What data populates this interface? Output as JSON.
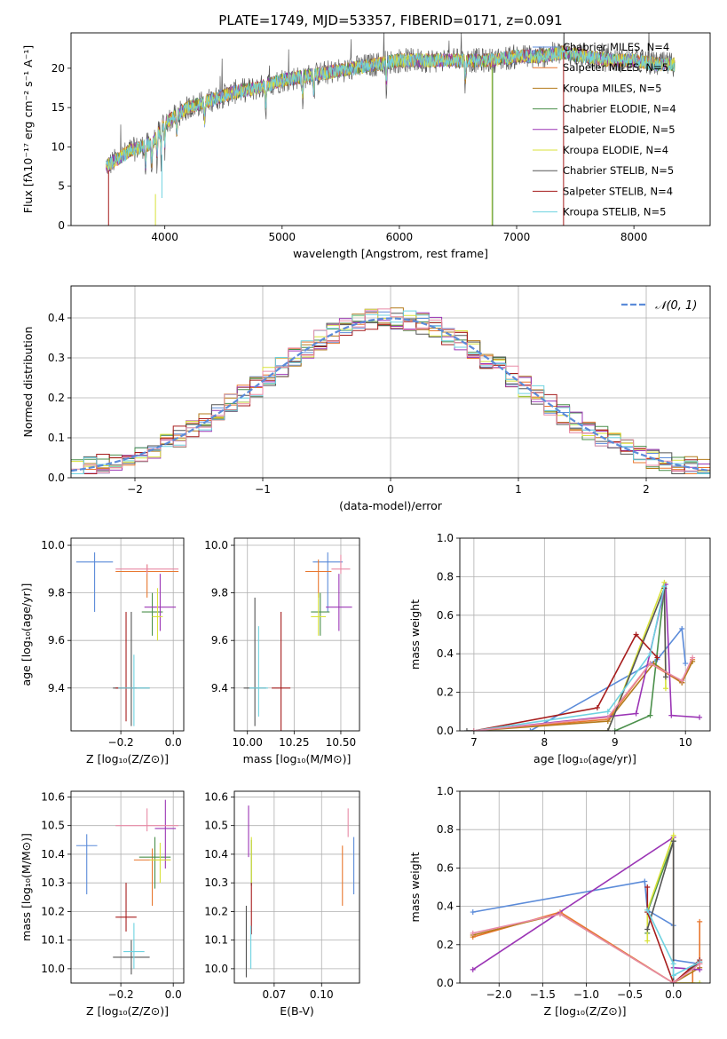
{
  "colors": [
    "#5b8bd9",
    "#e8772e",
    "#b47b1c",
    "#4a8f4a",
    "#9b35b5",
    "#d8e23a",
    "#555555",
    "#a61c1c",
    "#6ed2e0",
    "#e88aa6"
  ],
  "chart_data": [
    {
      "id": "spectrum",
      "type": "line",
      "title": "PLATE=1749, MJD=53357, FIBERID=0171, z=0.091",
      "xlabel": "wavelength [Angstrom, rest frame]",
      "ylabel": "Flux [fλ10⁻¹⁷ erg cm⁻² s⁻¹ A⁻¹]",
      "xlim": [
        3200,
        8650
      ],
      "ylim": [
        0,
        24.5
      ],
      "xticks": [
        4000,
        5000,
        6000,
        7000,
        8000
      ],
      "yticks": [
        0,
        5,
        10,
        15,
        20
      ],
      "grid": false,
      "legend_position": "top-right",
      "wavelength_range": [
        3500,
        8350
      ],
      "series": [
        {
          "name": "Chabrier MILES, N_SSP=4",
          "color_index": 0
        },
        {
          "name": "Salpeter MILES, N_SSP=5",
          "color_index": 1
        },
        {
          "name": "Kroupa MILES, N_SSP=5",
          "color_index": 2
        },
        {
          "name": "Chabrier ELODIE, N_SSP=4",
          "color_index": 3
        },
        {
          "name": "Salpeter ELODIE, N_SSP=5",
          "color_index": 4
        },
        {
          "name": "Kroupa ELODIE, N_SSP=4",
          "color_index": 5
        },
        {
          "name": "Chabrier STELIB, N_SSP=5",
          "color_index": 6
        },
        {
          "name": "Salpeter STELIB, N_SSP=4",
          "color_index": 7
        },
        {
          "name": "Kroupa STELIB, N_SSP=5",
          "color_index": 8
        }
      ],
      "continuum": [
        [
          3500,
          7.5
        ],
        [
          3600,
          8.5
        ],
        [
          3700,
          9.5
        ],
        [
          3800,
          10
        ],
        [
          3900,
          10.5
        ],
        [
          4000,
          13
        ],
        [
          4100,
          14
        ],
        [
          4200,
          15
        ],
        [
          4400,
          16
        ],
        [
          4600,
          17
        ],
        [
          4800,
          17.5
        ],
        [
          5000,
          18.5
        ],
        [
          5200,
          19
        ],
        [
          5400,
          19.5
        ],
        [
          5600,
          20
        ],
        [
          5800,
          20.5
        ],
        [
          6000,
          21
        ],
        [
          6200,
          21
        ],
        [
          6400,
          21
        ],
        [
          6600,
          21
        ],
        [
          6800,
          21
        ],
        [
          7000,
          21.5
        ],
        [
          7200,
          21.5
        ],
        [
          7400,
          22
        ],
        [
          7600,
          21.5
        ],
        [
          7800,
          21
        ],
        [
          8000,
          21
        ],
        [
          8200,
          20.5
        ],
        [
          8350,
          20.5
        ]
      ]
    },
    {
      "id": "residuals",
      "type": "step",
      "xlabel": "(data-model)/error",
      "ylabel": "Normed distribution",
      "xlim": [
        -2.5,
        2.5
      ],
      "ylim": [
        0,
        0.48
      ],
      "xticks": [
        -2,
        -1,
        0,
        1,
        2
      ],
      "yticks": [
        0.0,
        0.1,
        0.2,
        0.3,
        0.4
      ],
      "grid": true,
      "legend_position": "top-right",
      "legend": "𝒩(0, 1)",
      "bin_width": 0.1,
      "series_count": 10
    },
    {
      "id": "z-age",
      "type": "errorbar",
      "xlabel": "Z [log₁₀(Z/Z⊙)]",
      "ylabel": "age  [log₁₀(age/yr)]",
      "xlim": [
        -0.39,
        0.04
      ],
      "ylim": [
        9.22,
        10.03
      ],
      "xticks": [
        -0.2,
        0.0
      ],
      "yticks": [
        9.4,
        9.6,
        9.8,
        10.0
      ],
      "grid": true,
      "points": [
        {
          "x": -0.3,
          "y": 9.93,
          "xerr": 0.07,
          "yerr": [
            0.21,
            0.04
          ],
          "color_index": 0
        },
        {
          "x": -0.1,
          "y": 9.89,
          "xerr": 0.12,
          "yerr": [
            0.11,
            0.03
          ],
          "color_index": 1
        },
        {
          "x": -0.08,
          "y": 9.72,
          "xerr": 0.04,
          "yerr": [
            0.1,
            0.08
          ],
          "color_index": 3
        },
        {
          "x": -0.05,
          "y": 9.74,
          "xerr": 0.06,
          "yerr": [
            0.1,
            0.14
          ],
          "color_index": 4
        },
        {
          "x": -0.06,
          "y": 9.7,
          "xerr": 0.02,
          "yerr": [
            0.1,
            0.12
          ],
          "color_index": 5
        },
        {
          "x": -0.1,
          "y": 9.9,
          "xerr": 0.12,
          "yerr": [
            0.02,
            0.02
          ],
          "color_index": 9
        },
        {
          "x": -0.16,
          "y": 9.4,
          "xerr": 0.07,
          "yerr": [
            0.16,
            0.32
          ],
          "color_index": 6
        },
        {
          "x": -0.18,
          "y": 9.4,
          "xerr": 0.04,
          "yerr": [
            0.14,
            0.32
          ],
          "color_index": 7
        },
        {
          "x": -0.15,
          "y": 9.4,
          "xerr": 0.06,
          "yerr": [
            0.16,
            0.14
          ],
          "color_index": 8
        }
      ]
    },
    {
      "id": "mass-age",
      "type": "errorbar",
      "xlabel": "mass [log₁₀(M/M⊙)]",
      "ylabel": "",
      "xlim": [
        9.93,
        10.6
      ],
      "ylim": [
        9.22,
        10.03
      ],
      "xticks": [
        10.0,
        10.25,
        10.5
      ],
      "yticks": [
        9.4,
        9.6,
        9.8,
        10.0
      ],
      "grid": true,
      "points": [
        {
          "x": 10.43,
          "y": 9.93,
          "xerr": 0.08,
          "yerr": [
            0.21,
            0.04
          ],
          "color_index": 0
        },
        {
          "x": 10.38,
          "y": 9.89,
          "xerr": 0.07,
          "yerr": [
            0.11,
            0.05
          ],
          "color_index": 1
        },
        {
          "x": 10.39,
          "y": 9.72,
          "xerr": 0.05,
          "yerr": [
            0.1,
            0.08
          ],
          "color_index": 3
        },
        {
          "x": 10.49,
          "y": 9.74,
          "xerr": 0.07,
          "yerr": [
            0.1,
            0.14
          ],
          "color_index": 4
        },
        {
          "x": 10.38,
          "y": 9.7,
          "xerr": 0.04,
          "yerr": [
            0.08,
            0.1
          ],
          "color_index": 5
        },
        {
          "x": 10.5,
          "y": 9.9,
          "xerr": 0.05,
          "yerr": [
            0.02,
            0.06
          ],
          "color_index": 9
        },
        {
          "x": 10.04,
          "y": 9.4,
          "xerr": 0.06,
          "yerr": [
            0.16,
            0.38
          ],
          "color_index": 6
        },
        {
          "x": 10.18,
          "y": 9.4,
          "xerr": 0.05,
          "yerr": [
            0.18,
            0.32
          ],
          "color_index": 7
        },
        {
          "x": 10.06,
          "y": 9.4,
          "xerr": 0.05,
          "yerr": [
            0.12,
            0.26
          ],
          "color_index": 8
        }
      ]
    },
    {
      "id": "age-weight",
      "type": "line",
      "xlabel": "age  [log₁₀(age/yr)]",
      "ylabel": "mass weight",
      "xlim": [
        6.8,
        10.35
      ],
      "ylim": [
        0,
        1
      ],
      "xticks": [
        7,
        8,
        9,
        10
      ],
      "yticks": [
        0.0,
        0.2,
        0.4,
        0.6,
        0.8,
        1.0
      ],
      "grid": true,
      "series": [
        {
          "color_index": 0,
          "x": [
            7.8,
            9.6,
            9.95,
            10.0
          ],
          "y": [
            0.0,
            0.37,
            0.53,
            0.35
          ]
        },
        {
          "color_index": 1,
          "x": [
            7.0,
            8.9,
            9.5,
            9.95,
            10.1
          ],
          "y": [
            0.0,
            0.06,
            0.35,
            0.25,
            0.37
          ]
        },
        {
          "color_index": 2,
          "x": [
            7.0,
            8.9,
            9.55,
            9.95,
            10.1
          ],
          "y": [
            0.0,
            0.05,
            0.35,
            0.25,
            0.36
          ]
        },
        {
          "color_index": 3,
          "x": [
            9.0,
            9.5,
            9.7
          ],
          "y": [
            0.0,
            0.08,
            0.74
          ]
        },
        {
          "color_index": 4,
          "x": [
            7.0,
            9.3,
            9.72,
            9.8,
            10.2
          ],
          "y": [
            0.0,
            0.09,
            0.76,
            0.08,
            0.07
          ]
        },
        {
          "color_index": 5,
          "x": [
            7.0,
            8.9,
            9.7,
            9.72
          ],
          "y": [
            0.0,
            0.0,
            0.77,
            0.22
          ]
        },
        {
          "color_index": 6,
          "x": [
            6.9,
            8.9,
            9.7,
            9.72
          ],
          "y": [
            0.0,
            0.0,
            0.74,
            0.28
          ]
        },
        {
          "color_index": 7,
          "x": [
            7.0,
            8.75,
            9.3,
            9.6
          ],
          "y": [
            0.0,
            0.12,
            0.5,
            0.38
          ]
        },
        {
          "color_index": 8,
          "x": [
            7.0,
            8.9,
            9.5,
            9.7
          ],
          "y": [
            0.0,
            0.1,
            0.4,
            0.75
          ]
        },
        {
          "color_index": 9,
          "x": [
            7.0,
            8.9,
            9.5,
            9.95,
            10.1
          ],
          "y": [
            0.0,
            0.07,
            0.35,
            0.26,
            0.38
          ]
        }
      ]
    },
    {
      "id": "z-mass",
      "type": "errorbar",
      "xlabel": "Z [log₁₀(Z/Z⊙)]",
      "ylabel": "mass [log₁₀(M/M⊙)]",
      "xlim": [
        -0.39,
        0.04
      ],
      "ylim": [
        9.95,
        10.62
      ],
      "xticks": [
        -0.2,
        0.0
      ],
      "yticks": [
        10.0,
        10.1,
        10.2,
        10.3,
        10.4,
        10.5,
        10.6
      ],
      "grid": true,
      "points": [
        {
          "x": -0.33,
          "y": 10.43,
          "xerr": 0.04,
          "yerr": [
            0.17,
            0.04
          ],
          "color_index": 0
        },
        {
          "x": -0.08,
          "y": 10.38,
          "xerr": 0.07,
          "yerr": [
            0.16,
            0.04
          ],
          "color_index": 1
        },
        {
          "x": -0.07,
          "y": 10.39,
          "xerr": 0.06,
          "yerr": [
            0.11,
            0.07
          ],
          "color_index": 3
        },
        {
          "x": -0.03,
          "y": 10.49,
          "xerr": 0.04,
          "yerr": [
            0.14,
            0.1
          ],
          "color_index": 4
        },
        {
          "x": -0.05,
          "y": 10.38,
          "xerr": 0.04,
          "yerr": [
            0.08,
            0.06
          ],
          "color_index": 5
        },
        {
          "x": -0.1,
          "y": 10.5,
          "xerr": 0.12,
          "yerr": [
            0.02,
            0.06
          ],
          "color_index": 9
        },
        {
          "x": -0.16,
          "y": 10.04,
          "xerr": 0.07,
          "yerr": [
            0.06,
            0.06
          ],
          "color_index": 6
        },
        {
          "x": -0.18,
          "y": 10.18,
          "xerr": 0.04,
          "yerr": [
            0.05,
            0.12
          ],
          "color_index": 7
        },
        {
          "x": -0.15,
          "y": 10.06,
          "xerr": 0.04,
          "yerr": [
            0.06,
            0.1
          ],
          "color_index": 8
        }
      ]
    },
    {
      "id": "ebv-mass",
      "type": "errorbar",
      "xlabel": "E(B-V)",
      "ylabel": "",
      "xlim": [
        0.054,
        0.12
      ],
      "ylim": [
        9.95,
        10.62
      ],
      "xticks": [
        0.075,
        0.1
      ],
      "yticks": [
        10.0,
        10.1,
        10.2,
        10.3,
        10.4,
        10.5,
        10.6
      ],
      "grid": true,
      "points": [
        {
          "x": 0.117,
          "y": 10.43,
          "xerr": 0,
          "yerr": [
            0.17,
            0.03
          ],
          "color_index": 0
        },
        {
          "x": 0.111,
          "y": 10.38,
          "xerr": 0,
          "yerr": [
            0.16,
            0.05
          ],
          "color_index": 1
        },
        {
          "x": 0.063,
          "y": 10.39,
          "xerr": 0,
          "yerr": [
            0.1,
            0.06
          ],
          "color_index": 3
        },
        {
          "x": 0.0615,
          "y": 10.49,
          "xerr": 0,
          "yerr": [
            0.1,
            0.08
          ],
          "color_index": 4
        },
        {
          "x": 0.063,
          "y": 10.38,
          "xerr": 0,
          "yerr": [
            0.08,
            0.08
          ],
          "color_index": 5
        },
        {
          "x": 0.114,
          "y": 10.5,
          "xerr": 0,
          "yerr": [
            0.04,
            0.06
          ],
          "color_index": 9
        },
        {
          "x": 0.0603,
          "y": 10.04,
          "xerr": 0,
          "yerr": [
            0.07,
            0.18
          ],
          "color_index": 6
        },
        {
          "x": 0.063,
          "y": 10.18,
          "xerr": 0,
          "yerr": [
            0.06,
            0.12
          ],
          "color_index": 7
        },
        {
          "x": 0.0627,
          "y": 10.06,
          "xerr": 0,
          "yerr": [
            0.06,
            0.09
          ],
          "color_index": 8
        }
      ]
    },
    {
      "id": "z-weight",
      "type": "line",
      "xlabel": "Z [log₁₀(Z/Z⊙)]",
      "ylabel": "mass weight",
      "xlim": [
        -2.45,
        0.42
      ],
      "ylim": [
        0,
        1
      ],
      "xticks": [
        -2.0,
        -1.5,
        -1.0,
        -0.5,
        0.0
      ],
      "yticks": [
        0.0,
        0.2,
        0.4,
        0.6,
        0.8,
        1.0
      ],
      "grid": true,
      "series": [
        {
          "color_index": 0,
          "x": [
            -2.3,
            -0.33,
            -0.3,
            0.0,
            0.0,
            0.3
          ],
          "y": [
            0.37,
            0.53,
            0.38,
            0.3,
            0.12,
            0.1
          ]
        },
        {
          "color_index": 1,
          "x": [
            -2.3,
            -1.3,
            0.0,
            0.22,
            0.22,
            0.3,
            0.3
          ],
          "y": [
            0.24,
            0.37,
            0.0,
            0.0,
            0.08,
            0.1,
            0.32
          ]
        },
        {
          "color_index": 2,
          "x": [
            -2.3,
            -1.3,
            0.0,
            0.3
          ],
          "y": [
            0.25,
            0.36,
            0.0,
            0.08
          ]
        },
        {
          "color_index": 3,
          "x": [
            -0.3,
            -0.3,
            0.0
          ],
          "y": [
            0.26,
            0.37,
            0.74
          ]
        },
        {
          "color_index": 4,
          "x": [
            -2.3,
            0.0,
            0.0,
            0.3
          ],
          "y": [
            0.07,
            0.76,
            0.08,
            0.07
          ]
        },
        {
          "color_index": 5,
          "x": [
            -0.3,
            -0.3,
            0.0,
            0.0,
            0.3
          ],
          "y": [
            0.22,
            0.38,
            0.77,
            0.0,
            0.0
          ]
        },
        {
          "color_index": 6,
          "x": [
            -0.3,
            0.0,
            0.0,
            0.3
          ],
          "y": [
            0.28,
            0.74,
            0.0,
            0.11
          ]
        },
        {
          "color_index": 7,
          "x": [
            -0.3,
            -0.3,
            0.0,
            0.3
          ],
          "y": [
            0.5,
            0.37,
            0.0,
            0.12
          ]
        },
        {
          "color_index": 8,
          "x": [
            -0.3,
            0.0,
            0.0,
            0.3
          ],
          "y": [
            0.38,
            0.1,
            0.04,
            0.11
          ]
        },
        {
          "color_index": 9,
          "x": [
            -2.3,
            -1.3,
            0.0,
            0.3
          ],
          "y": [
            0.26,
            0.36,
            0.0,
            0.1
          ]
        }
      ]
    }
  ]
}
